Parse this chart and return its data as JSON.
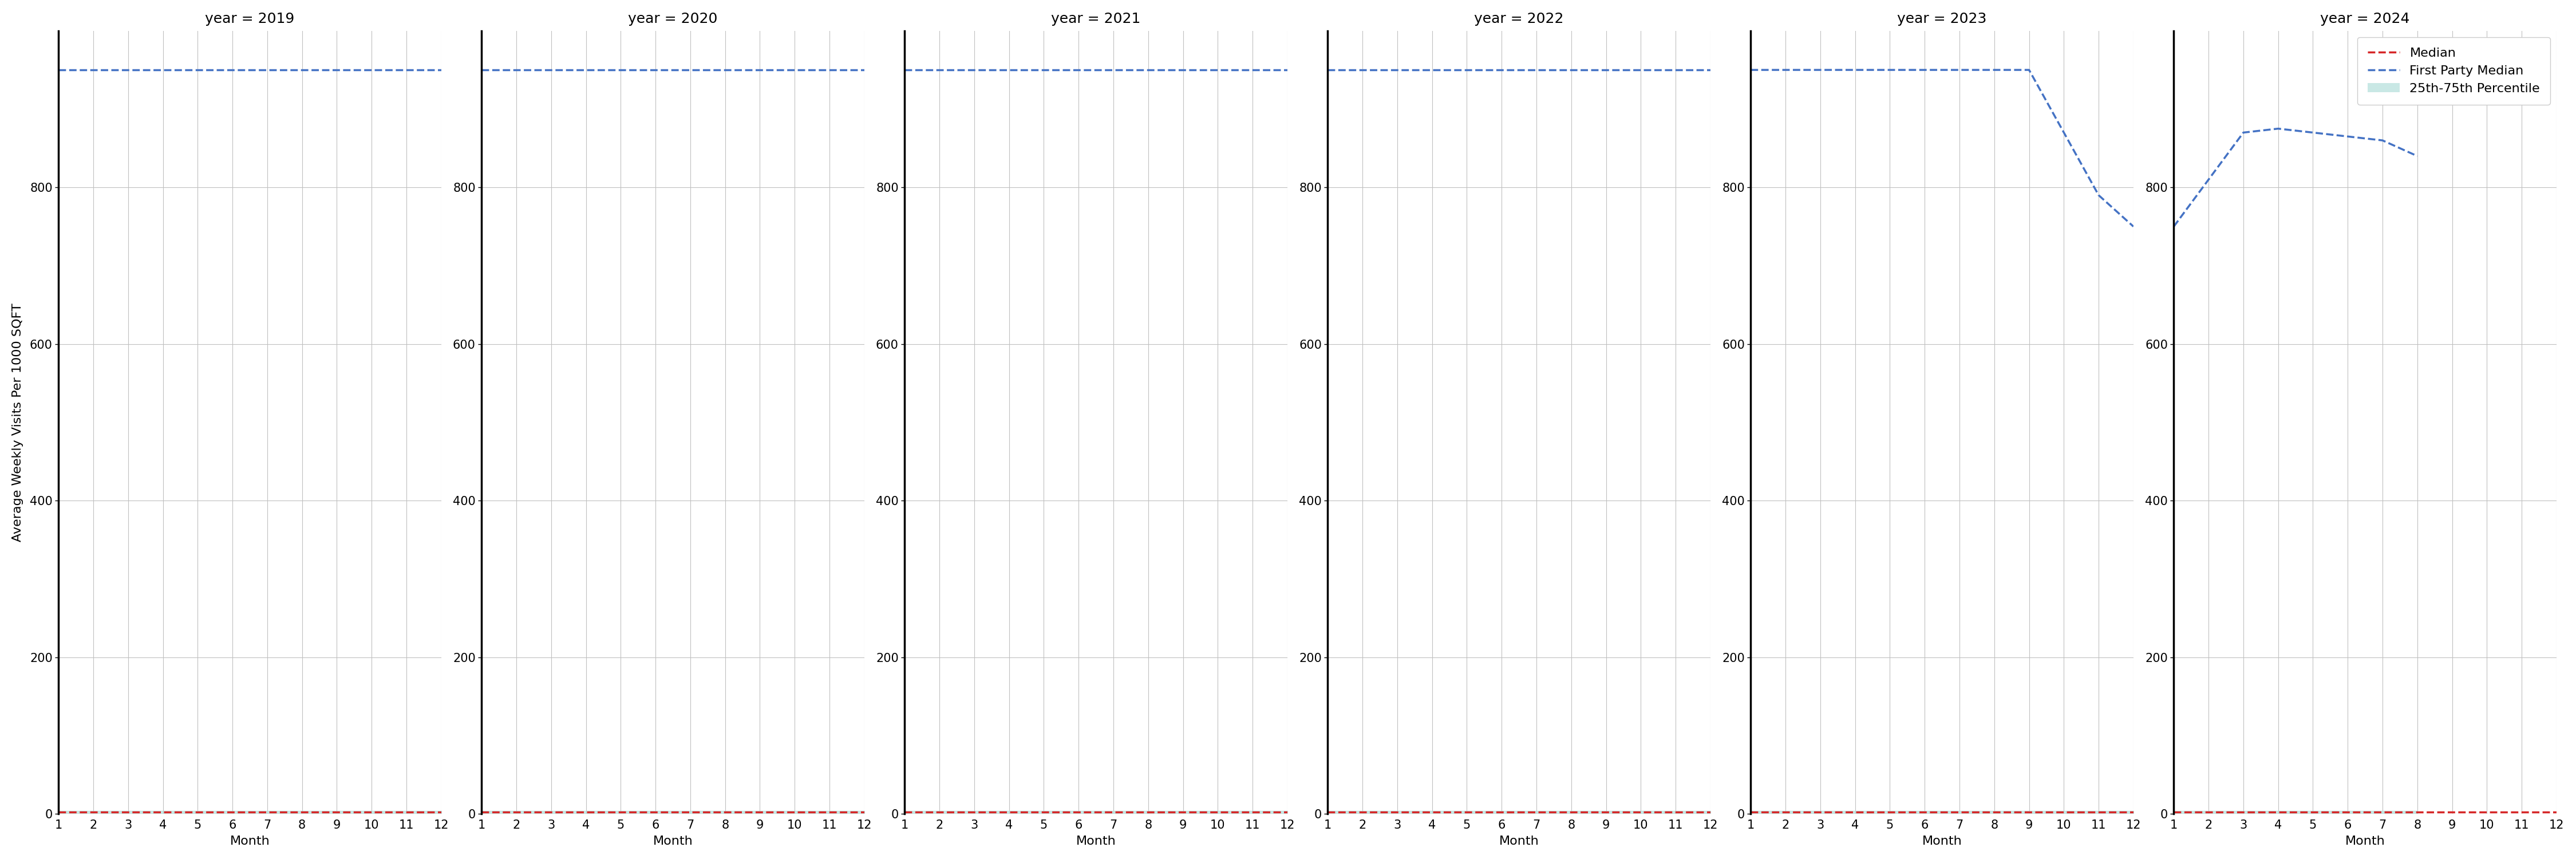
{
  "years": [
    2019,
    2020,
    2021,
    2022,
    2023,
    2024
  ],
  "months": [
    1,
    2,
    3,
    4,
    5,
    6,
    7,
    8,
    9,
    10,
    11,
    12
  ],
  "ylabel": "Average Weekly Visits Per 1000 SQFT",
  "xlabel": "Month",
  "ylim": [
    0,
    1000
  ],
  "yticks": [
    0,
    200,
    400,
    600,
    800
  ],
  "red_median": {
    "2019": [
      2,
      2,
      2,
      2,
      2,
      2,
      2,
      2,
      2,
      2,
      2,
      2
    ],
    "2020": [
      2,
      2,
      2,
      2,
      2,
      2,
      2,
      2,
      2,
      2,
      2,
      2
    ],
    "2021": [
      2,
      2,
      2,
      2,
      2,
      2,
      2,
      2,
      2,
      2,
      2,
      2
    ],
    "2022": [
      2,
      2,
      2,
      2,
      2,
      2,
      2,
      2,
      2,
      2,
      2,
      2
    ],
    "2023": [
      2,
      2,
      2,
      2,
      2,
      2,
      2,
      2,
      2,
      2,
      2,
      2
    ],
    "2024": [
      2,
      2,
      2,
      2,
      2,
      2,
      2,
      2,
      2,
      2,
      2,
      2
    ]
  },
  "blue_first_party": {
    "2019": [
      950,
      950,
      950,
      950,
      950,
      950,
      950,
      950,
      950,
      950,
      950,
      950
    ],
    "2020": [
      950,
      950,
      950,
      950,
      950,
      950,
      950,
      950,
      950,
      950,
      950,
      950
    ],
    "2021": [
      950,
      950,
      950,
      950,
      950,
      950,
      950,
      950,
      950,
      950,
      950,
      950
    ],
    "2022": [
      950,
      950,
      950,
      950,
      950,
      950,
      950,
      950,
      950,
      950,
      950,
      950
    ],
    "2023": [
      950,
      950,
      950,
      950,
      950,
      950,
      950,
      950,
      950,
      870,
      790,
      750
    ],
    "2024": [
      750,
      810,
      870,
      875,
      870,
      865,
      860,
      840,
      null,
      null,
      null,
      null
    ]
  },
  "p25": {
    "2019": [
      1,
      1,
      1,
      1,
      1,
      1,
      1,
      1,
      1,
      1,
      1,
      1
    ],
    "2020": [
      1,
      1,
      1,
      1,
      1,
      1,
      1,
      1,
      1,
      1,
      1,
      1
    ],
    "2021": [
      1,
      1,
      1,
      1,
      1,
      1,
      1,
      1,
      1,
      1,
      1,
      1
    ],
    "2022": [
      1,
      1,
      1,
      1,
      1,
      1,
      1,
      1,
      1,
      1,
      1,
      1
    ],
    "2023": [
      1,
      1,
      1,
      1,
      1,
      1,
      1,
      1,
      1,
      1,
      1,
      1
    ],
    "2024": [
      1,
      1,
      1,
      1,
      1,
      1,
      1,
      1,
      null,
      null,
      null,
      null
    ]
  },
  "p75": {
    "2019": [
      4,
      4,
      4,
      4,
      4,
      4,
      4,
      4,
      4,
      4,
      4,
      4
    ],
    "2020": [
      4,
      4,
      4,
      4,
      4,
      4,
      4,
      4,
      4,
      4,
      4,
      4
    ],
    "2021": [
      4,
      4,
      4,
      4,
      4,
      4,
      4,
      4,
      4,
      4,
      4,
      4
    ],
    "2022": [
      4,
      4,
      4,
      4,
      4,
      4,
      4,
      4,
      4,
      4,
      4,
      4
    ],
    "2023": [
      4,
      4,
      4,
      4,
      4,
      4,
      4,
      4,
      4,
      4,
      4,
      4
    ],
    "2024": [
      4,
      4,
      4,
      4,
      4,
      4,
      4,
      4,
      null,
      null,
      null,
      null
    ]
  },
  "median_color": "#d62728",
  "first_party_color": "#4472c4",
  "percentile_color": "#b2dfdb",
  "background_color": "#ffffff",
  "grid_color": "#c0c0c0",
  "title_fontsize": 18,
  "axis_label_fontsize": 16,
  "tick_fontsize": 15,
  "legend_fontsize": 16
}
